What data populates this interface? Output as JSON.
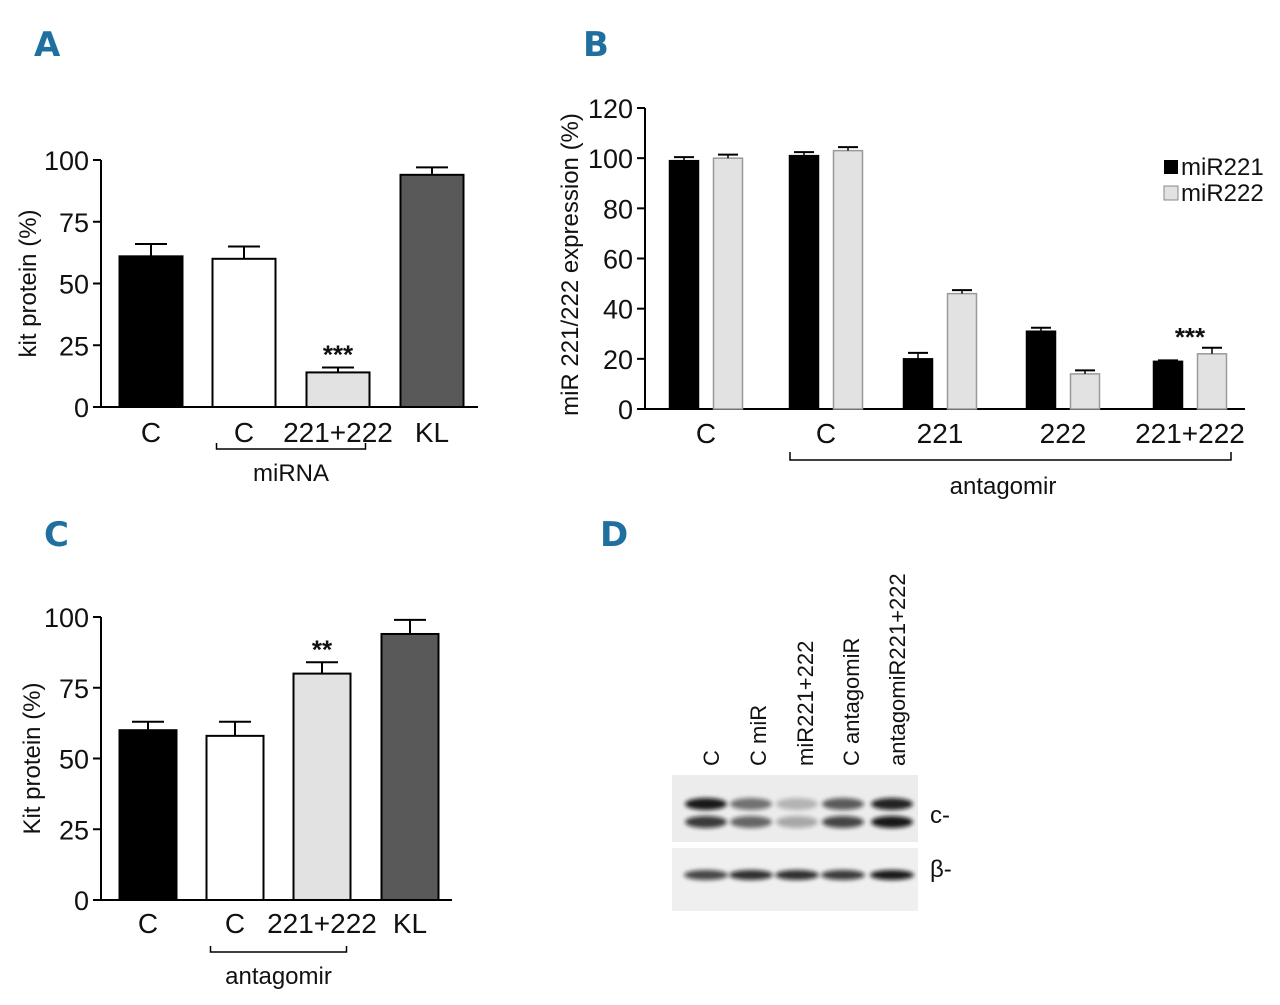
{
  "colors": {
    "panel_letter": "#1f6fa0",
    "black": "#000000",
    "white": "#ffffff",
    "light_gray": "#e2e2e2",
    "dark_gray": "#595959"
  },
  "chart_data": [
    {
      "panel": "A",
      "type": "bar",
      "ylabel": "kit protein (%)",
      "ylim": [
        0,
        100
      ],
      "yticks": [
        "0",
        "25",
        "50",
        "75",
        "100"
      ],
      "categories": [
        "C",
        "C",
        "221+222",
        "KL"
      ],
      "values": [
        61,
        60,
        14,
        94
      ],
      "errors": [
        5,
        5,
        2,
        3
      ],
      "bar_colors": [
        "black",
        "white",
        "light_gray",
        "dark_gray"
      ],
      "significance": [
        "",
        "",
        "***",
        ""
      ],
      "group_label": "miRNA",
      "group_span": [
        1,
        2
      ]
    },
    {
      "panel": "B",
      "type": "bar",
      "ylabel": "miR 221/222 expression (%)",
      "ylim": [
        0,
        120
      ],
      "yticks": [
        "0",
        "20",
        "40",
        "60",
        "80",
        "100",
        "120"
      ],
      "categories": [
        "C",
        "C",
        "221",
        "222",
        "221+222"
      ],
      "series": [
        {
          "name": "miR221",
          "color": "black",
          "values": [
            99,
            101,
            20,
            31,
            19
          ],
          "errors": [
            1,
            1,
            2,
            1,
            0
          ]
        },
        {
          "name": "miR222",
          "color": "light_gray",
          "values": [
            100,
            103,
            46,
            14,
            22
          ],
          "errors": [
            1,
            1,
            1,
            1,
            2
          ]
        }
      ],
      "significance": [
        "",
        "",
        "",
        "",
        "***"
      ],
      "group_label": "antagomir",
      "group_span": [
        1,
        4
      ],
      "legend": [
        "miR221",
        "miR222"
      ],
      "legend_position": "top-right"
    },
    {
      "panel": "C",
      "type": "bar",
      "ylabel": "Kit protein (%)",
      "ylim": [
        0,
        100
      ],
      "yticks": [
        "0",
        "25",
        "50",
        "75",
        "100"
      ],
      "categories": [
        "C",
        "C",
        "221+222",
        "KL"
      ],
      "values": [
        60,
        58,
        80,
        94
      ],
      "errors": [
        3,
        5,
        4,
        5
      ],
      "bar_colors": [
        "black",
        "white",
        "light_gray",
        "dark_gray"
      ],
      "significance": [
        "",
        "",
        "**",
        ""
      ],
      "group_label": "antagomir",
      "group_span": [
        1,
        2
      ]
    }
  ],
  "blot": {
    "panel": "D",
    "lanes": [
      "C",
      "C miR",
      "miR221+222",
      "C antagomiR",
      "antagomiR221+222"
    ],
    "rows": [
      "c-",
      "β-"
    ]
  }
}
